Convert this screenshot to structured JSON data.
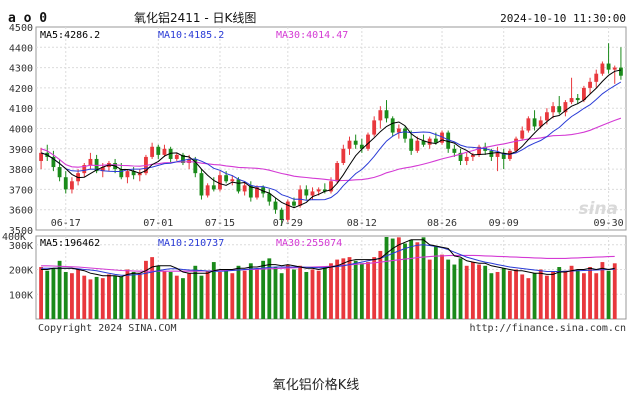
{
  "header": {
    "icon_text": "a o 0",
    "title": "氧化铝2411 - 日K线图",
    "datetime": "2024-10-10 11:30:00"
  },
  "price_panel": {
    "ma5": "MA5:4286.2",
    "ma10": "MA10:4185.2",
    "ma30": "MA30:4014.47",
    "y_ticks": [
      "4500",
      "4400",
      "4300",
      "4200",
      "4100",
      "4000",
      "3900",
      "3800",
      "3700",
      "3600",
      "3500"
    ]
  },
  "volume_panel": {
    "top_label": "400K",
    "ma5": "MA5:196462",
    "ma10": "MA10:210737",
    "ma30": "MA30:255074",
    "y_ticks": [
      "300K",
      "200K",
      "100K"
    ]
  },
  "footer": {
    "copyright": "Copyright 2024 SINA.COM",
    "url": "http://finance.sina.com.cn"
  },
  "watermark": "sina",
  "caption": "氧化铝价格K线",
  "colors": {
    "up": "#e8383d",
    "down": "#1a8a1a",
    "ma5": "#000000",
    "ma10": "#2a3bd6",
    "ma30": "#d43ad4",
    "ma10_label": "#2a3bd6",
    "ma30_label": "#d43ad4"
  },
  "chart_data": {
    "type": "candlestick",
    "y_range": [
      3500,
      4500
    ],
    "volume_range": [
      0,
      400000
    ],
    "x_tick_labels": [
      {
        "index": 4,
        "label": "06-17"
      },
      {
        "index": 19,
        "label": "07-01"
      },
      {
        "index": 29,
        "label": "07-15"
      },
      {
        "index": 40,
        "label": "07-29"
      },
      {
        "index": 52,
        "label": "08-12"
      },
      {
        "index": 65,
        "label": "08-26"
      },
      {
        "index": 75,
        "label": "09-09"
      },
      {
        "index": 92,
        "label": "09-30"
      }
    ],
    "ohlc": [
      [
        3840,
        3905,
        3800,
        3880
      ],
      [
        3880,
        3920,
        3840,
        3860
      ],
      [
        3860,
        3890,
        3790,
        3810
      ],
      [
        3810,
        3850,
        3740,
        3760
      ],
      [
        3760,
        3790,
        3680,
        3700
      ],
      [
        3700,
        3760,
        3680,
        3740
      ],
      [
        3740,
        3800,
        3720,
        3780
      ],
      [
        3780,
        3830,
        3760,
        3820
      ],
      [
        3820,
        3880,
        3800,
        3850
      ],
      [
        3850,
        3870,
        3780,
        3790
      ],
      [
        3790,
        3830,
        3760,
        3810
      ],
      [
        3810,
        3840,
        3790,
        3830
      ],
      [
        3830,
        3850,
        3780,
        3800
      ],
      [
        3800,
        3830,
        3750,
        3760
      ],
      [
        3760,
        3800,
        3730,
        3790
      ],
      [
        3790,
        3810,
        3750,
        3770
      ],
      [
        3770,
        3800,
        3740,
        3780
      ],
      [
        3780,
        3870,
        3770,
        3860
      ],
      [
        3860,
        3930,
        3850,
        3910
      ],
      [
        3910,
        3920,
        3850,
        3870
      ],
      [
        3870,
        3920,
        3860,
        3900
      ],
      [
        3900,
        3910,
        3830,
        3850
      ],
      [
        3850,
        3880,
        3840,
        3870
      ],
      [
        3870,
        3880,
        3820,
        3830
      ],
      [
        3830,
        3870,
        3800,
        3850
      ],
      [
        3850,
        3860,
        3760,
        3780
      ],
      [
        3780,
        3800,
        3650,
        3670
      ],
      [
        3670,
        3730,
        3660,
        3720
      ],
      [
        3720,
        3760,
        3690,
        3700
      ],
      [
        3700,
        3790,
        3690,
        3770
      ],
      [
        3770,
        3790,
        3730,
        3740
      ],
      [
        3740,
        3770,
        3720,
        3750
      ],
      [
        3750,
        3760,
        3680,
        3690
      ],
      [
        3690,
        3740,
        3670,
        3720
      ],
      [
        3720,
        3740,
        3640,
        3660
      ],
      [
        3660,
        3720,
        3650,
        3710
      ],
      [
        3710,
        3720,
        3660,
        3680
      ],
      [
        3680,
        3700,
        3620,
        3640
      ],
      [
        3640,
        3660,
        3580,
        3600
      ],
      [
        3600,
        3610,
        3520,
        3550
      ],
      [
        3550,
        3650,
        3540,
        3640
      ],
      [
        3640,
        3660,
        3610,
        3620
      ],
      [
        3620,
        3720,
        3610,
        3700
      ],
      [
        3700,
        3720,
        3650,
        3670
      ],
      [
        3670,
        3710,
        3650,
        3690
      ],
      [
        3690,
        3710,
        3670,
        3700
      ],
      [
        3700,
        3730,
        3680,
        3690
      ],
      [
        3690,
        3760,
        3680,
        3740
      ],
      [
        3740,
        3840,
        3730,
        3830
      ],
      [
        3830,
        3920,
        3820,
        3900
      ],
      [
        3900,
        3960,
        3870,
        3940
      ],
      [
        3940,
        3970,
        3900,
        3920
      ],
      [
        3920,
        3950,
        3880,
        3900
      ],
      [
        3900,
        3980,
        3890,
        3970
      ],
      [
        3970,
        4060,
        3960,
        4040
      ],
      [
        4040,
        4110,
        4000,
        4090
      ],
      [
        4090,
        4140,
        4030,
        4050
      ],
      [
        4050,
        4060,
        3960,
        3980
      ],
      [
        3980,
        4020,
        3950,
        4000
      ],
      [
        4000,
        4010,
        3930,
        3950
      ],
      [
        3950,
        3990,
        3870,
        3890
      ],
      [
        3890,
        3960,
        3880,
        3940
      ],
      [
        3940,
        3970,
        3910,
        3920
      ],
      [
        3920,
        3960,
        3900,
        3950
      ],
      [
        3950,
        3980,
        3920,
        3930
      ],
      [
        3930,
        3990,
        3920,
        3980
      ],
      [
        3980,
        3990,
        3880,
        3900
      ],
      [
        3900,
        3920,
        3860,
        3880
      ],
      [
        3880,
        3900,
        3820,
        3840
      ],
      [
        3840,
        3880,
        3820,
        3860
      ],
      [
        3860,
        3880,
        3840,
        3870
      ],
      [
        3870,
        3920,
        3860,
        3910
      ],
      [
        3910,
        3930,
        3870,
        3890
      ],
      [
        3890,
        3900,
        3840,
        3860
      ],
      [
        3860,
        3910,
        3790,
        3880
      ],
      [
        3880,
        3900,
        3800,
        3850
      ],
      [
        3850,
        3900,
        3840,
        3890
      ],
      [
        3890,
        3960,
        3880,
        3950
      ],
      [
        3950,
        4010,
        3940,
        3990
      ],
      [
        3990,
        4060,
        3980,
        4050
      ],
      [
        4050,
        4090,
        3990,
        4010
      ],
      [
        4010,
        4060,
        4000,
        4040
      ],
      [
        4040,
        4100,
        4020,
        4080
      ],
      [
        4080,
        4130,
        4050,
        4110
      ],
      [
        4110,
        4160,
        4070,
        4080
      ],
      [
        4080,
        4140,
        4060,
        4130
      ],
      [
        4130,
        4250,
        4120,
        4150
      ],
      [
        4150,
        4170,
        4120,
        4140
      ],
      [
        4140,
        4210,
        4130,
        4200
      ],
      [
        4200,
        4250,
        4170,
        4230
      ],
      [
        4230,
        4290,
        4200,
        4270
      ],
      [
        4270,
        4330,
        4260,
        4320
      ],
      [
        4320,
        4420,
        4270,
        4290
      ],
      [
        4290,
        4310,
        4220,
        4300
      ],
      [
        4300,
        4400,
        4240,
        4260
      ]
    ],
    "volume": [
      210000,
      195000,
      205000,
      235000,
      190000,
      185000,
      200000,
      175000,
      160000,
      170000,
      165000,
      180000,
      175000,
      170000,
      200000,
      190000,
      185000,
      235000,
      250000,
      215000,
      195000,
      190000,
      175000,
      165000,
      185000,
      215000,
      175000,
      195000,
      230000,
      190000,
      200000,
      185000,
      215000,
      195000,
      225000,
      200000,
      235000,
      245000,
      210000,
      185000,
      220000,
      200000,
      215000,
      190000,
      200000,
      195000,
      210000,
      225000,
      240000,
      245000,
      250000,
      235000,
      225000,
      230000,
      250000,
      275000,
      335000,
      325000,
      330000,
      305000,
      320000,
      310000,
      330000,
      240000,
      295000,
      260000,
      240000,
      220000,
      245000,
      215000,
      230000,
      220000,
      215000,
      185000,
      190000,
      205000,
      195000,
      200000,
      180000,
      165000,
      185000,
      200000,
      175000,
      190000,
      210000,
      195000,
      215000,
      200000,
      185000,
      210000,
      185000,
      230000,
      195000,
      225000
    ],
    "ma_volume": {
      "ma5": [
        200000,
        200000,
        205000,
        205000,
        205000,
        205000,
        200000,
        195000,
        185000,
        180000,
        175000,
        175000,
        175000,
        170000,
        180000,
        185000,
        185000,
        195000,
        210000,
        215000,
        215000,
        215000,
        205000,
        190000,
        185000,
        185000,
        185000,
        185000,
        195000,
        200000,
        200000,
        200000,
        205000,
        205000,
        210000,
        210000,
        215000,
        220000,
        220000,
        215000,
        220000,
        215000,
        210000,
        205000,
        205000,
        200000,
        205000,
        210000,
        215000,
        225000,
        235000,
        240000,
        240000,
        240000,
        240000,
        245000,
        265000,
        285000,
        300000,
        310000,
        320000,
        320000,
        320000,
        300000,
        295000,
        290000,
        285000,
        255000,
        250000,
        235000,
        230000,
        225000,
        225000,
        215000,
        210000,
        205000,
        200000,
        195000,
        195000,
        190000,
        185000,
        185000,
        180000,
        180000,
        190000,
        190000,
        195000,
        200000,
        200000,
        205000,
        200000,
        205000,
        200000,
        205000
      ],
      "ma10": [
        205000,
        205000,
        205000,
        205000,
        205000,
        205000,
        203000,
        200000,
        198000,
        195000,
        190000,
        185000,
        180000,
        177000,
        177000,
        178000,
        180000,
        185000,
        190000,
        195000,
        200000,
        203000,
        203000,
        200000,
        198000,
        197000,
        196000,
        194000,
        193000,
        193000,
        194000,
        196000,
        198000,
        200000,
        202000,
        204000,
        206000,
        208000,
        210000,
        210000,
        210000,
        210000,
        210000,
        209000,
        208000,
        207000,
        208000,
        210000,
        212000,
        215000,
        220000,
        225000,
        230000,
        235000,
        240000,
        245000,
        255000,
        265000,
        275000,
        285000,
        292000,
        298000,
        300000,
        297000,
        293000,
        288000,
        280000,
        270000,
        260000,
        250000,
        243000,
        236000,
        230000,
        225000,
        220000,
        215000,
        210000,
        207000,
        204000,
        201000,
        198000,
        195000,
        192000,
        192000,
        192000,
        193000,
        194000,
        195000,
        196000,
        197000,
        198000,
        199000,
        200000,
        201000
      ],
      "ma30": [
        215000,
        215000,
        214000,
        213000,
        212000,
        211000,
        210000,
        208000,
        206000,
        204000,
        202000,
        200000,
        198000,
        196000,
        195000,
        194000,
        193000,
        193000,
        193000,
        193000,
        193000,
        193000,
        193000,
        193000,
        193000,
        193000,
        194000,
        194000,
        195000,
        195000,
        196000,
        197000,
        198000,
        199000,
        200000,
        201000,
        202000,
        203000,
        204000,
        205000,
        206000,
        207000,
        208000,
        209000,
        210000,
        211000,
        212000,
        213000,
        215000,
        217000,
        219000,
        221000,
        223000,
        225000,
        227000,
        230000,
        233000,
        236000,
        239000,
        242000,
        245000,
        248000,
        250000,
        252000,
        254000,
        255000,
        256000,
        257000,
        257000,
        257000,
        257000,
        256000,
        255000,
        254000,
        253000,
        252000,
        251000,
        250000,
        249000,
        248000,
        247000,
        246000,
        245000,
        245000,
        245000,
        245000,
        246000,
        247000,
        248000,
        249000,
        250000,
        251000,
        252000,
        253000
      ]
    }
  }
}
